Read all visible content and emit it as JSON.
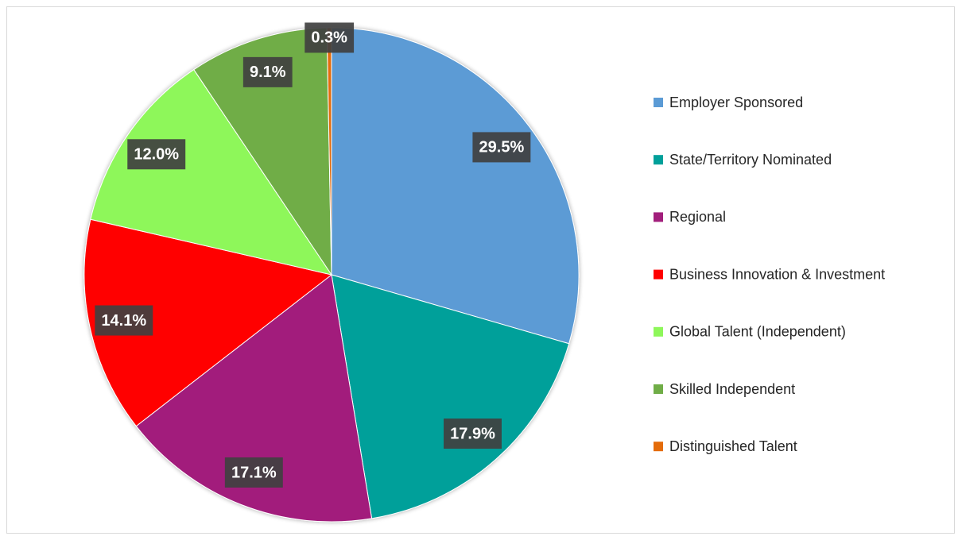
{
  "chart_data": {
    "type": "pie",
    "categories": [
      "Employer Sponsored",
      "State/Territory Nominated",
      "Regional",
      "Business Innovation & Investment",
      "Global Talent (Independent)",
      "Skilled Independent",
      "Distinguished Talent"
    ],
    "values": [
      29.5,
      17.9,
      17.1,
      14.1,
      12.0,
      9.1,
      0.3
    ],
    "value_labels": [
      "29.5%",
      "17.9%",
      "17.1%",
      "14.1%",
      "12.0%",
      "9.1%",
      "0.3%"
    ],
    "colors": [
      "#5b9bd5",
      "#00a09a",
      "#a21f7c",
      "#ff0000",
      "#8ef75a",
      "#70ad47",
      "#e46c0a"
    ],
    "legend": "right"
  }
}
